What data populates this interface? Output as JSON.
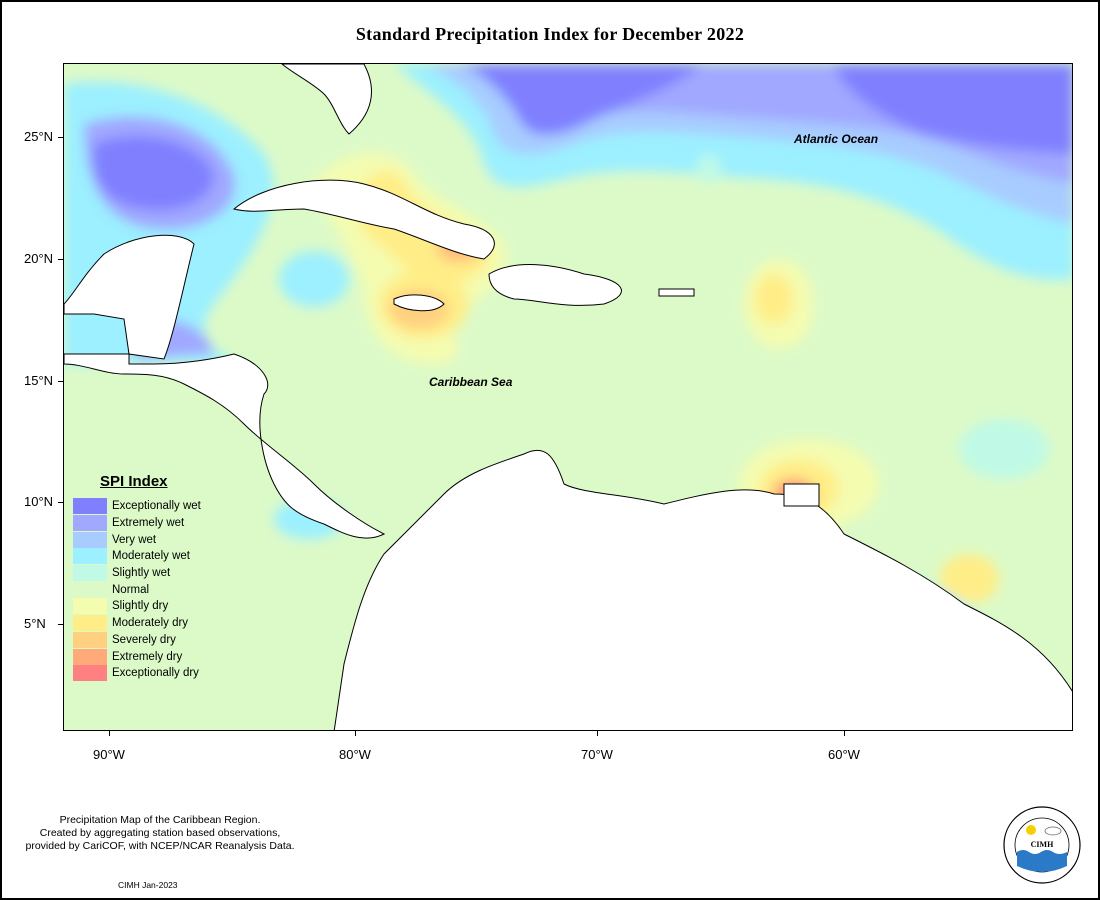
{
  "title": "Standard Precipitation Index for December 2022",
  "y_axis": [
    {
      "label": "25°N",
      "lat": 25
    },
    {
      "label": "20°N",
      "lat": 20
    },
    {
      "label": "15°N",
      "lat": 15
    },
    {
      "label": "10°N",
      "lat": 10
    },
    {
      "label": "5°N",
      "lat": 5
    }
  ],
  "x_axis": [
    {
      "label": "90°W",
      "lon": -90
    },
    {
      "label": "80°W",
      "lon": -80
    },
    {
      "label": "70°W",
      "lon": -70
    },
    {
      "label": "60°W",
      "lon": -60
    }
  ],
  "map_labels": {
    "atlantic": "Atlantic Ocean",
    "caribbean": "Caribbean Sea"
  },
  "legend": {
    "title": "SPI Index",
    "items": [
      {
        "label": "Exceptionally wet",
        "color": "#8080ff"
      },
      {
        "label": "Extremely wet",
        "color": "#a0a8ff"
      },
      {
        "label": "Very wet",
        "color": "#a8ccff"
      },
      {
        "label": "Moderately wet",
        "color": "#9cf0ff"
      },
      {
        "label": "Slightly wet",
        "color": "#c0fae6"
      },
      {
        "label": "Normal",
        "color": "#dcfac8"
      },
      {
        "label": "Slightly dry",
        "color": "#f4fcb0"
      },
      {
        "label": "Moderately dry",
        "color": "#ffee88"
      },
      {
        "label": "Severely dry",
        "color": "#ffd080"
      },
      {
        "label": "Extremely dry",
        "color": "#ffaa78"
      },
      {
        "label": "Exceptionally dry",
        "color": "#ff8080"
      }
    ]
  },
  "footer": {
    "line1": "Precipitation Map of the Caribbean Region.",
    "line2": "Created by aggregating station based observations,",
    "line3": "provided by CariCOF, with NCEP/NCAR Reanalysis Data.",
    "credit": "CIMH Jan-2023"
  },
  "logo": {
    "text": "CIMH"
  }
}
